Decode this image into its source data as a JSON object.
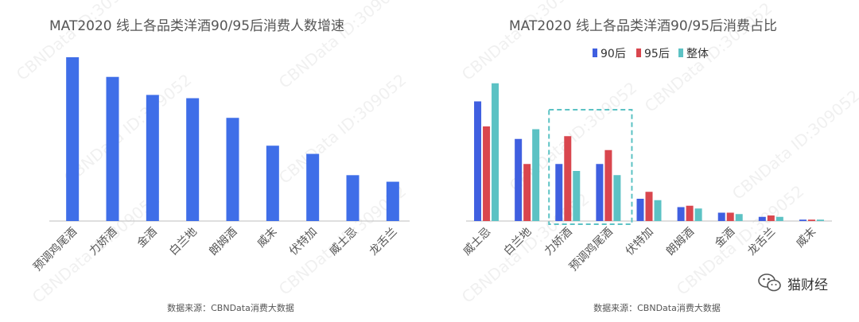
{
  "watermark_text": "CBNData ID:309052",
  "brand": {
    "name": "猫财经",
    "icon": "wechat-icon"
  },
  "colors": {
    "bar_blue": "#3f6ee8",
    "s90": "#3f5fe0",
    "s95": "#d9464e",
    "all": "#5cc2c4",
    "axis": "#bfbfbf",
    "highlight": "#5cc2c4",
    "text": "#555555",
    "title": "#555555"
  },
  "chart_data": [
    {
      "type": "bar",
      "title": "MAT2020 线上各品类洋酒90/95后消费人数增速",
      "source": "数据来源：CBNData消费大数据",
      "categories": [
        "预调鸡尾酒",
        "力娇酒",
        "金酒",
        "白兰地",
        "朗姆酒",
        "威末",
        "伏特加",
        "威士忌",
        "龙舌兰"
      ],
      "values": [
        100,
        88,
        77,
        75,
        63,
        46,
        41,
        28,
        24
      ],
      "ylim": [
        0,
        100
      ],
      "grid": false,
      "legend": false
    },
    {
      "type": "bar",
      "title": "MAT2020 线上各品类洋酒90/95后消费占比",
      "source": "数据来源：CBNData消费大数据",
      "categories": [
        "威士忌",
        "白兰地",
        "力娇酒",
        "预调鸡尾酒",
        "伏特加",
        "朗姆酒",
        "金酒",
        "龙舌兰",
        "威末"
      ],
      "series": [
        {
          "name": "90后",
          "values": [
            86,
            59,
            41,
            41,
            16,
            10,
            6,
            3,
            1
          ]
        },
        {
          "name": "95后",
          "values": [
            68,
            41,
            61,
            51,
            21,
            11,
            6,
            4,
            1
          ]
        },
        {
          "name": "整体",
          "values": [
            99,
            66,
            36,
            33,
            15,
            9,
            5,
            3,
            1
          ]
        }
      ],
      "highlight_categories": [
        "力娇酒",
        "预调鸡尾酒"
      ],
      "ylim": [
        0,
        100
      ],
      "grid": false,
      "legend_position": "top"
    }
  ]
}
